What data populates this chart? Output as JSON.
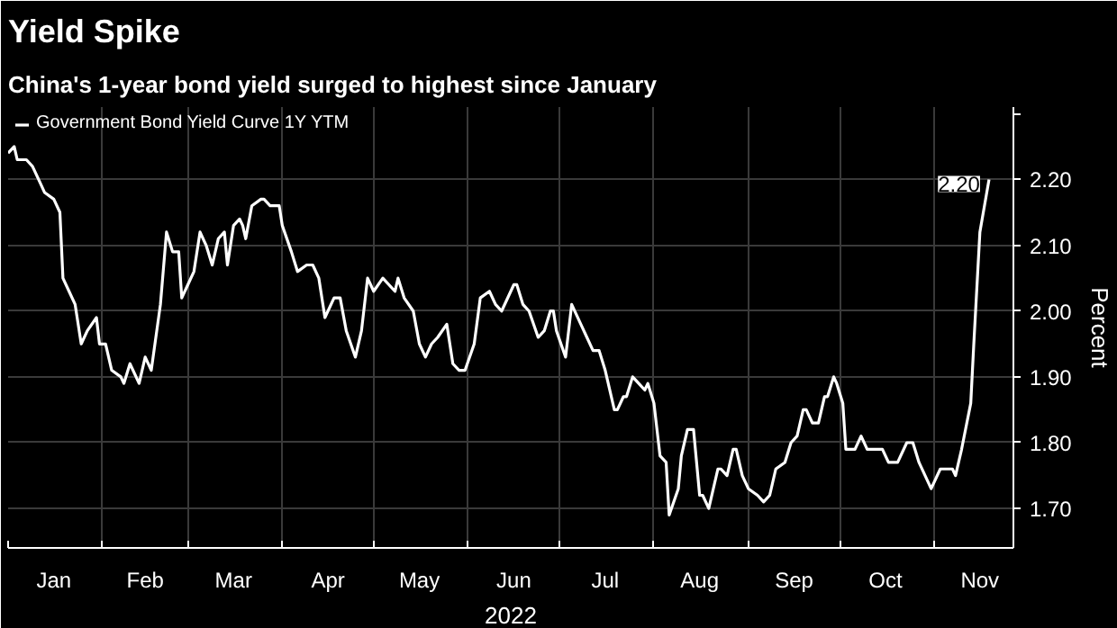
{
  "chart_data": {
    "type": "line",
    "title": "Yield Spike",
    "subtitle": "China's 1-year bond yield surged to highest since January",
    "xlabel": "2022",
    "ylabel": "Percent",
    "x": [
      "2022-01-01",
      "2022-01-03",
      "2022-01-04",
      "2022-01-07",
      "2022-01-09",
      "2022-01-11",
      "2022-01-13",
      "2022-01-16",
      "2022-01-18",
      "2022-01-19",
      "2022-01-21",
      "2022-01-23",
      "2022-01-25",
      "2022-01-27",
      "2022-01-30",
      "2022-01-31",
      "2022-02-02",
      "2022-02-04",
      "2022-02-07",
      "2022-02-08",
      "2022-02-10",
      "2022-02-13",
      "2022-02-15",
      "2022-02-17",
      "2022-02-20",
      "2022-02-22",
      "2022-02-24",
      "2022-02-26",
      "2022-02-27",
      "2022-03-01",
      "2022-03-03",
      "2022-03-05",
      "2022-03-07",
      "2022-03-09",
      "2022-03-11",
      "2022-03-13",
      "2022-03-14",
      "2022-03-16",
      "2022-03-18",
      "2022-03-19",
      "2022-03-20",
      "2022-03-22",
      "2022-03-25",
      "2022-03-26",
      "2022-03-28",
      "2022-03-31",
      "2022-04-01",
      "2022-04-04",
      "2022-04-06",
      "2022-04-09",
      "2022-04-11",
      "2022-04-13",
      "2022-04-15",
      "2022-04-18",
      "2022-04-20",
      "2022-04-22",
      "2022-04-25",
      "2022-04-27",
      "2022-04-29",
      "2022-05-01",
      "2022-05-04",
      "2022-05-08",
      "2022-05-09",
      "2022-05-11",
      "2022-05-14",
      "2022-05-16",
      "2022-05-18",
      "2022-05-20",
      "2022-05-22",
      "2022-05-25",
      "2022-05-27",
      "2022-05-29",
      "2022-05-31",
      "2022-06-03",
      "2022-06-05",
      "2022-06-08",
      "2022-06-10",
      "2022-06-12",
      "2022-06-16",
      "2022-06-17",
      "2022-06-19",
      "2022-06-21",
      "2022-06-24",
      "2022-06-26",
      "2022-06-28",
      "2022-06-29",
      "2022-06-30",
      "2022-07-03",
      "2022-07-05",
      "2022-07-08",
      "2022-07-10",
      "2022-07-12",
      "2022-07-14",
      "2022-07-16",
      "2022-07-19",
      "2022-07-20",
      "2022-07-22",
      "2022-07-23",
      "2022-07-25",
      "2022-07-27",
      "2022-07-29",
      "2022-07-30",
      "2022-08-01",
      "2022-08-03",
      "2022-08-05",
      "2022-08-06",
      "2022-08-09",
      "2022-08-10",
      "2022-08-12",
      "2022-08-14",
      "2022-08-16",
      "2022-08-17",
      "2022-08-19",
      "2022-08-22",
      "2022-08-23",
      "2022-08-25",
      "2022-08-27",
      "2022-08-28",
      "2022-08-30",
      "2022-09-01",
      "2022-09-04",
      "2022-09-06",
      "2022-09-08",
      "2022-09-10",
      "2022-09-13",
      "2022-09-15",
      "2022-09-17",
      "2022-09-19",
      "2022-09-20",
      "2022-09-22",
      "2022-09-24",
      "2022-09-26",
      "2022-09-27",
      "2022-09-29",
      "2022-09-30",
      "2022-10-02",
      "2022-10-03",
      "2022-10-06",
      "2022-10-08",
      "2022-10-10",
      "2022-10-15",
      "2022-10-17",
      "2022-10-20",
      "2022-10-23",
      "2022-10-25",
      "2022-10-27",
      "2022-10-31",
      "2022-11-03",
      "2022-11-05",
      "2022-11-07",
      "2022-11-08",
      "2022-11-10",
      "2022-11-13",
      "2022-11-14",
      "2022-11-16",
      "2022-11-19"
    ],
    "series": [
      {
        "name": "Government Bond Yield Curve 1Y YTM",
        "color": "#ffffff",
        "values": [
          2.24,
          2.25,
          2.23,
          2.23,
          2.22,
          2.2,
          2.18,
          2.17,
          2.15,
          2.05,
          2.03,
          2.01,
          1.95,
          1.97,
          1.99,
          1.95,
          1.95,
          1.91,
          1.9,
          1.89,
          1.92,
          1.89,
          1.93,
          1.91,
          2.01,
          2.12,
          2.09,
          2.09,
          2.02,
          2.04,
          2.06,
          2.12,
          2.1,
          2.07,
          2.11,
          2.12,
          2.07,
          2.13,
          2.14,
          2.13,
          2.11,
          2.16,
          2.17,
          2.17,
          2.16,
          2.16,
          2.13,
          2.09,
          2.06,
          2.07,
          2.07,
          2.05,
          1.99,
          2.02,
          2.02,
          1.97,
          1.93,
          1.97,
          2.05,
          2.03,
          2.05,
          2.03,
          2.05,
          2.02,
          2.0,
          1.95,
          1.93,
          1.95,
          1.96,
          1.98,
          1.92,
          1.91,
          1.91,
          1.95,
          2.02,
          2.03,
          2.01,
          2.0,
          2.04,
          2.04,
          2.01,
          2.0,
          1.96,
          1.97,
          2.0,
          2.0,
          1.97,
          1.93,
          2.01,
          1.98,
          1.96,
          1.94,
          1.94,
          1.91,
          1.85,
          1.85,
          1.87,
          1.87,
          1.9,
          1.89,
          1.88,
          1.89,
          1.86,
          1.78,
          1.77,
          1.69,
          1.73,
          1.78,
          1.82,
          1.82,
          1.72,
          1.72,
          1.7,
          1.76,
          1.76,
          1.75,
          1.79,
          1.79,
          1.75,
          1.73,
          1.72,
          1.71,
          1.72,
          1.76,
          1.77,
          1.8,
          1.81,
          1.85,
          1.85,
          1.83,
          1.83,
          1.87,
          1.87,
          1.9,
          1.89,
          1.86,
          1.79,
          1.79,
          1.81,
          1.79,
          1.79,
          1.77,
          1.77,
          1.8,
          1.8,
          1.77,
          1.73,
          1.76,
          1.76,
          1.76,
          1.75,
          1.79,
          1.86,
          1.95,
          2.12,
          2.2
        ],
        "value_labels": [
          null,
          null,
          null,
          null,
          null,
          null,
          null,
          null,
          null,
          null,
          null,
          null,
          null,
          null,
          null,
          null,
          null,
          null,
          null,
          null,
          null,
          null,
          null,
          null,
          null,
          null,
          null,
          null,
          null,
          null,
          null,
          null,
          null,
          null,
          null,
          null,
          null,
          null,
          null,
          null,
          null,
          null,
          null,
          null,
          null,
          null,
          null,
          null,
          null,
          null,
          null,
          null,
          null,
          null,
          null,
          null,
          null,
          null,
          null,
          null,
          null,
          null,
          null,
          null,
          null,
          null,
          null,
          null,
          null,
          null,
          null,
          null,
          null,
          null,
          null,
          null,
          null,
          null,
          null,
          null,
          null,
          null,
          null,
          null,
          null,
          null,
          null,
          null,
          null,
          null,
          null,
          null,
          null,
          null,
          null,
          null,
          null,
          null,
          null,
          null,
          null,
          null,
          null,
          null,
          null,
          null,
          null,
          null,
          null,
          null,
          null,
          null,
          null,
          null,
          null,
          null,
          null,
          null,
          null,
          null,
          null,
          null,
          null,
          null,
          null,
          null,
          null,
          null,
          null,
          null,
          null,
          null,
          null,
          null,
          null,
          null,
          null,
          null,
          null,
          null,
          null,
          null,
          null,
          null,
          null,
          null,
          null,
          null,
          null,
          null,
          null,
          null,
          null,
          null,
          null,
          "2.20"
        ]
      }
    ],
    "xlim": [
      "2022-01-01",
      "2022-11-27"
    ],
    "xticks": [
      {
        "value": "2022-01-01",
        "label": null
      },
      {
        "value": "2022-01-16",
        "label": "Jan"
      },
      {
        "value": "2022-02-01",
        "label": null
      },
      {
        "value": "2022-02-15",
        "label": "Feb"
      },
      {
        "value": "2022-03-01",
        "label": null
      },
      {
        "value": "2022-03-16",
        "label": "Mar"
      },
      {
        "value": "2022-04-01",
        "label": null
      },
      {
        "value": "2022-04-16",
        "label": "Apr"
      },
      {
        "value": "2022-05-01",
        "label": null
      },
      {
        "value": "2022-05-16",
        "label": "May"
      },
      {
        "value": "2022-06-01",
        "label": null
      },
      {
        "value": "2022-06-16",
        "label": "Jun"
      },
      {
        "value": "2022-07-01",
        "label": null
      },
      {
        "value": "2022-07-16",
        "label": "Jul"
      },
      {
        "value": "2022-08-01",
        "label": null
      },
      {
        "value": "2022-08-16",
        "label": "Aug"
      },
      {
        "value": "2022-09-01",
        "label": null
      },
      {
        "value": "2022-09-16",
        "label": "Sep"
      },
      {
        "value": "2022-10-01",
        "label": null
      },
      {
        "value": "2022-10-16",
        "label": "Oct"
      },
      {
        "value": "2022-11-01",
        "label": null
      },
      {
        "value": "2022-11-16",
        "label": "Nov"
      }
    ],
    "ylim": [
      1.64,
      2.31
    ],
    "yticks": [
      {
        "value": 1.7,
        "label": "1.70"
      },
      {
        "value": 1.8,
        "label": "1.80"
      },
      {
        "value": 1.9,
        "label": "1.90"
      },
      {
        "value": 2.0,
        "label": "2.00"
      },
      {
        "value": 2.1,
        "label": "2.10"
      },
      {
        "value": 2.2,
        "label": "2.20"
      },
      {
        "value": 2.3,
        "label": null
      }
    ],
    "grid": true,
    "legend": "top left",
    "line_style": "solid",
    "marker": "none"
  }
}
